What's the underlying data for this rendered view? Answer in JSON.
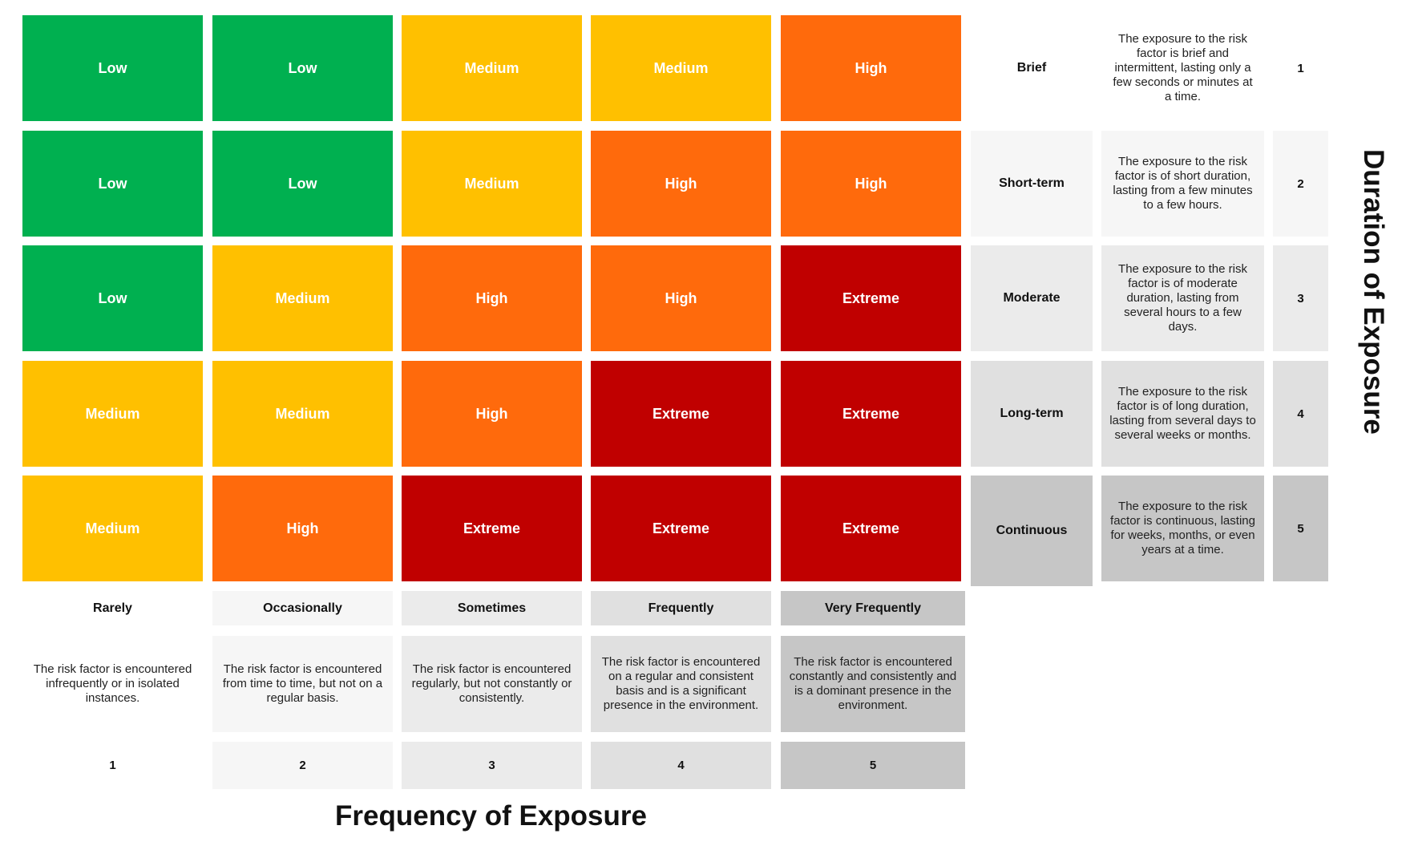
{
  "colors": {
    "Low": "#00b050",
    "Medium": "#ffc000",
    "High": "#ff6a0c",
    "Extreme": "#c00000"
  },
  "matrix": [
    [
      "Low",
      "Low",
      "Medium",
      "Medium",
      "High"
    ],
    [
      "Low",
      "Low",
      "Medium",
      "High",
      "High"
    ],
    [
      "Low",
      "Medium",
      "High",
      "High",
      "Extreme"
    ],
    [
      "Medium",
      "Medium",
      "High",
      "Extreme",
      "Extreme"
    ],
    [
      "Medium",
      "High",
      "Extreme",
      "Extreme",
      "Extreme"
    ]
  ],
  "duration": {
    "title": "Duration of Exposure",
    "levels": [
      {
        "label": "Brief",
        "description": "The exposure to the risk factor is brief and intermittent, lasting only a few seconds or minutes at a time.",
        "number": "1",
        "shade": "#ffffff"
      },
      {
        "label": "Short-term",
        "description": "The exposure to the risk factor is of short duration, lasting from a few minutes to a few hours.",
        "number": "2",
        "shade": "#f6f6f6"
      },
      {
        "label": "Moderate",
        "description": "The exposure to the risk factor is of moderate duration, lasting from several hours to a few days.",
        "number": "3",
        "shade": "#ebebeb"
      },
      {
        "label": "Long-term",
        "description": "The exposure to the risk factor is of long duration, lasting from several days to several weeks or months.",
        "number": "4",
        "shade": "#e0e0e0"
      },
      {
        "label": "Continuous",
        "description": "The exposure to the risk factor is continuous, lasting for weeks, months, or even years at a time.",
        "number": "5",
        "shade": "#c6c6c6"
      }
    ]
  },
  "frequency": {
    "title": "Frequency of Exposure",
    "levels": [
      {
        "label": "Rarely",
        "description": "The risk factor is encountered infrequently or in isolated instances.",
        "number": "1",
        "shade": "#ffffff"
      },
      {
        "label": "Occasionally",
        "description": "The risk factor is encountered from time to time, but not on a regular basis.",
        "number": "2",
        "shade": "#f6f6f6"
      },
      {
        "label": "Sometimes",
        "description": "The risk factor is encountered regularly, but not constantly or consistently.",
        "number": "3",
        "shade": "#ebebeb"
      },
      {
        "label": "Frequently",
        "description": "The risk factor is encountered on a regular and consistent basis and is a significant presence in the environment.",
        "number": "4",
        "shade": "#e0e0e0"
      },
      {
        "label": "Very Frequently",
        "description": "The risk factor is encountered constantly and consistently and is a dominant presence in the environment.",
        "number": "5",
        "shade": "#c6c6c6"
      }
    ]
  }
}
